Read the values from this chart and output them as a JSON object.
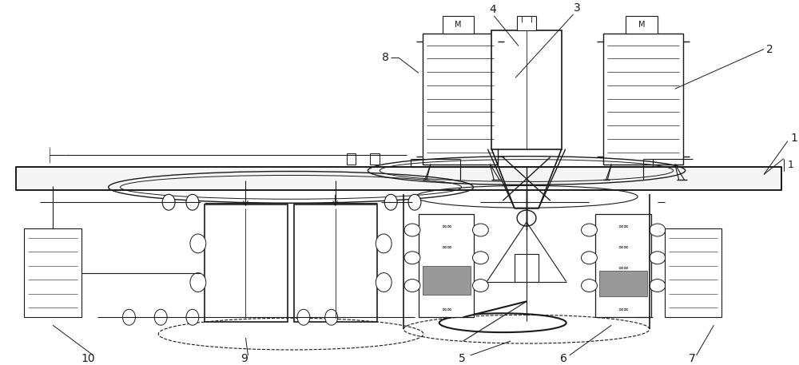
{
  "bg_color": "#ffffff",
  "line_color": "#1a1a1a",
  "lw": 0.8,
  "fig_width": 10.0,
  "fig_height": 4.57
}
